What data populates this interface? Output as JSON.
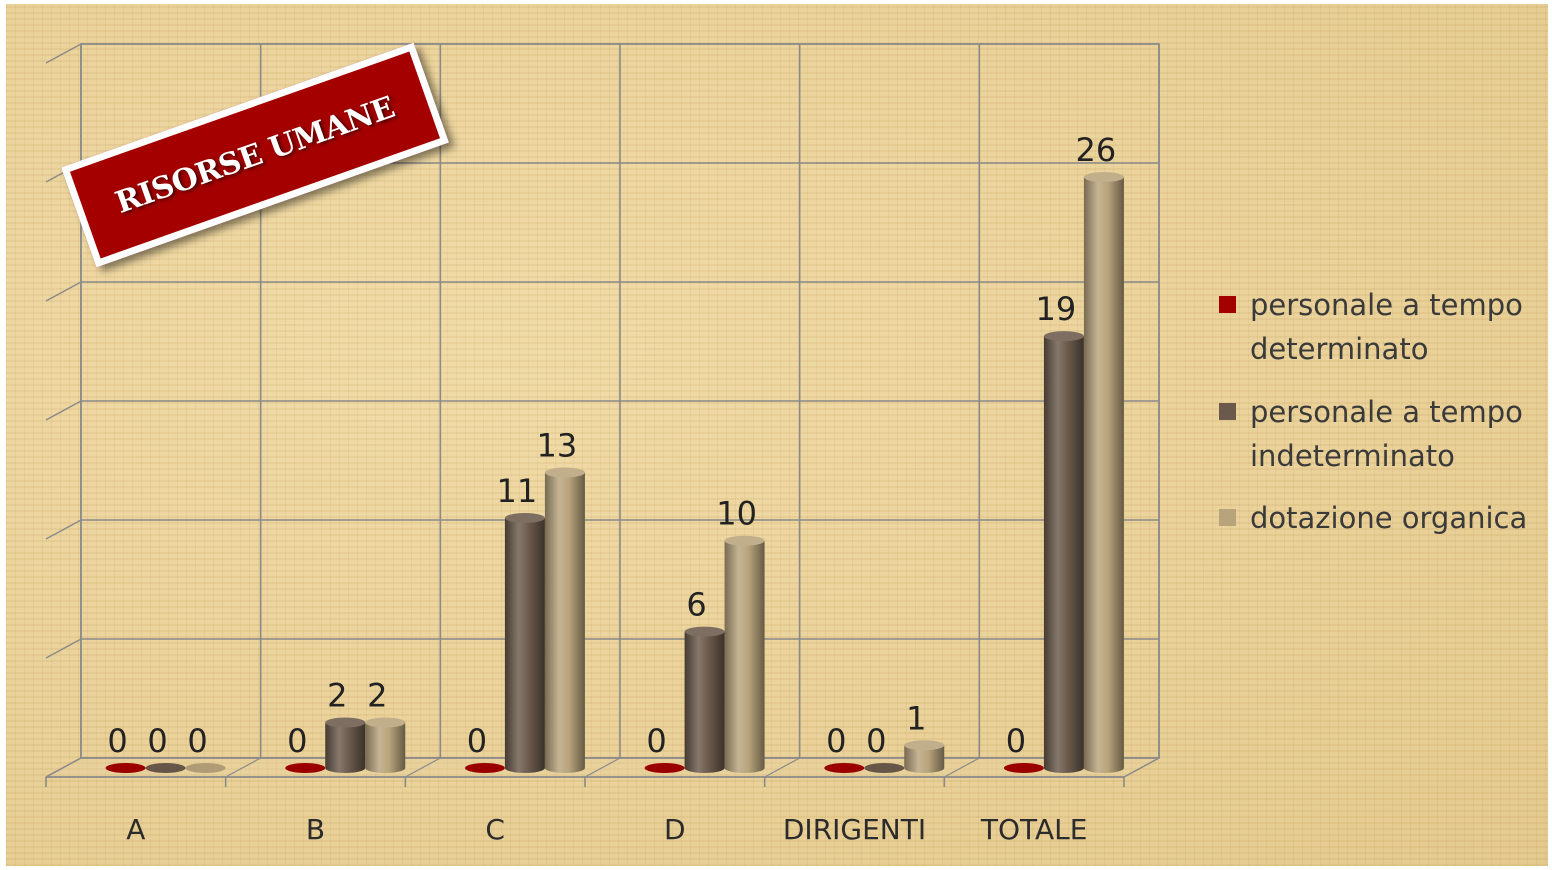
{
  "slide": {
    "banner_text": "RISORSE UMANE"
  },
  "chart_data": {
    "type": "bar",
    "categories": [
      "A",
      "B",
      "C",
      "D",
      "DIRIGENTI",
      "TOTALE"
    ],
    "series": [
      {
        "name": "personale a tempo determinato",
        "values": [
          0,
          0,
          0,
          0,
          0,
          0
        ],
        "color": "#a30000"
      },
      {
        "name": "personale a tempo indeterminato",
        "values": [
          0,
          2,
          11,
          6,
          0,
          19
        ],
        "color": "#6b5a4c"
      },
      {
        "name": "dotazione organica",
        "values": [
          0,
          2,
          13,
          10,
          1,
          26
        ],
        "color": "#b8a47c"
      }
    ],
    "title": "",
    "xlabel": "",
    "ylabel": "",
    "ylim": [
      0,
      30
    ],
    "grid": true,
    "data_labels": true,
    "legend_position": "right"
  }
}
